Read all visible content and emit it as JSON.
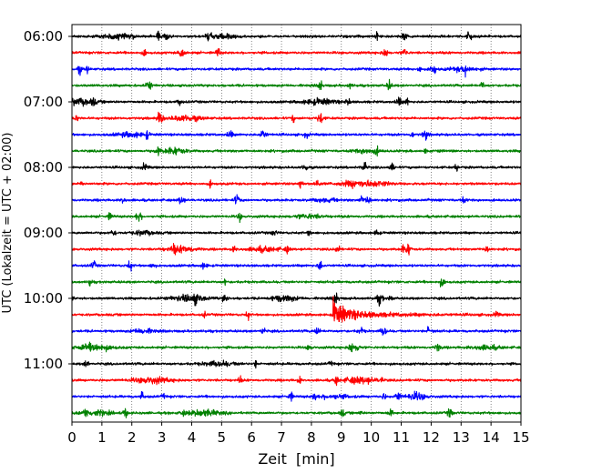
{
  "chart_data": {
    "type": "line",
    "subtype": "helicorder-seismogram",
    "title": "",
    "xlabel": "Zeit  [min]",
    "ylabel": "UTC (Lokalzeit = UTC + 02:00)",
    "xlim": [
      0,
      15
    ],
    "x_ticks": [
      0,
      1,
      2,
      3,
      4,
      5,
      6,
      7,
      8,
      9,
      10,
      11,
      12,
      13,
      14,
      15
    ],
    "x_tick_labels": [
      "0",
      "1",
      "2",
      "3",
      "4",
      "5",
      "6",
      "7",
      "8",
      "9",
      "10",
      "11",
      "12",
      "13",
      "14",
      "15"
    ],
    "y_tick_labels": [
      "06:00",
      "07:00",
      "08:00",
      "09:00",
      "10:00",
      "11:00"
    ],
    "trace_interval_min": 15,
    "grid": "vertical dotted lines at each minute",
    "trace_colors": [
      "#000000",
      "#ff0000",
      "#0000ff",
      "#008000"
    ],
    "traces": [
      {
        "start": "06:00",
        "color": "#000000"
      },
      {
        "start": "06:15",
        "color": "#ff0000"
      },
      {
        "start": "06:30",
        "color": "#0000ff"
      },
      {
        "start": "06:45",
        "color": "#008000"
      },
      {
        "start": "07:00",
        "color": "#000000"
      },
      {
        "start": "07:15",
        "color": "#ff0000"
      },
      {
        "start": "07:30",
        "color": "#0000ff"
      },
      {
        "start": "07:45",
        "color": "#008000"
      },
      {
        "start": "08:00",
        "color": "#000000"
      },
      {
        "start": "08:15",
        "color": "#ff0000"
      },
      {
        "start": "08:30",
        "color": "#0000ff"
      },
      {
        "start": "08:45",
        "color": "#008000"
      },
      {
        "start": "09:00",
        "color": "#000000"
      },
      {
        "start": "09:15",
        "color": "#ff0000"
      },
      {
        "start": "09:30",
        "color": "#0000ff"
      },
      {
        "start": "09:45",
        "color": "#008000"
      },
      {
        "start": "10:00",
        "color": "#000000"
      },
      {
        "start": "10:15",
        "color": "#ff0000"
      },
      {
        "start": "10:30",
        "color": "#0000ff"
      },
      {
        "start": "10:45",
        "color": "#008000"
      },
      {
        "start": "11:00",
        "color": "#000000"
      },
      {
        "start": "11:15",
        "color": "#ff0000"
      },
      {
        "start": "11:30",
        "color": "#0000ff"
      },
      {
        "start": "11:45",
        "color": "#008000"
      }
    ],
    "event": {
      "trace_start": "10:15",
      "onset_min": 8.7,
      "description": "earthquake signal"
    }
  }
}
